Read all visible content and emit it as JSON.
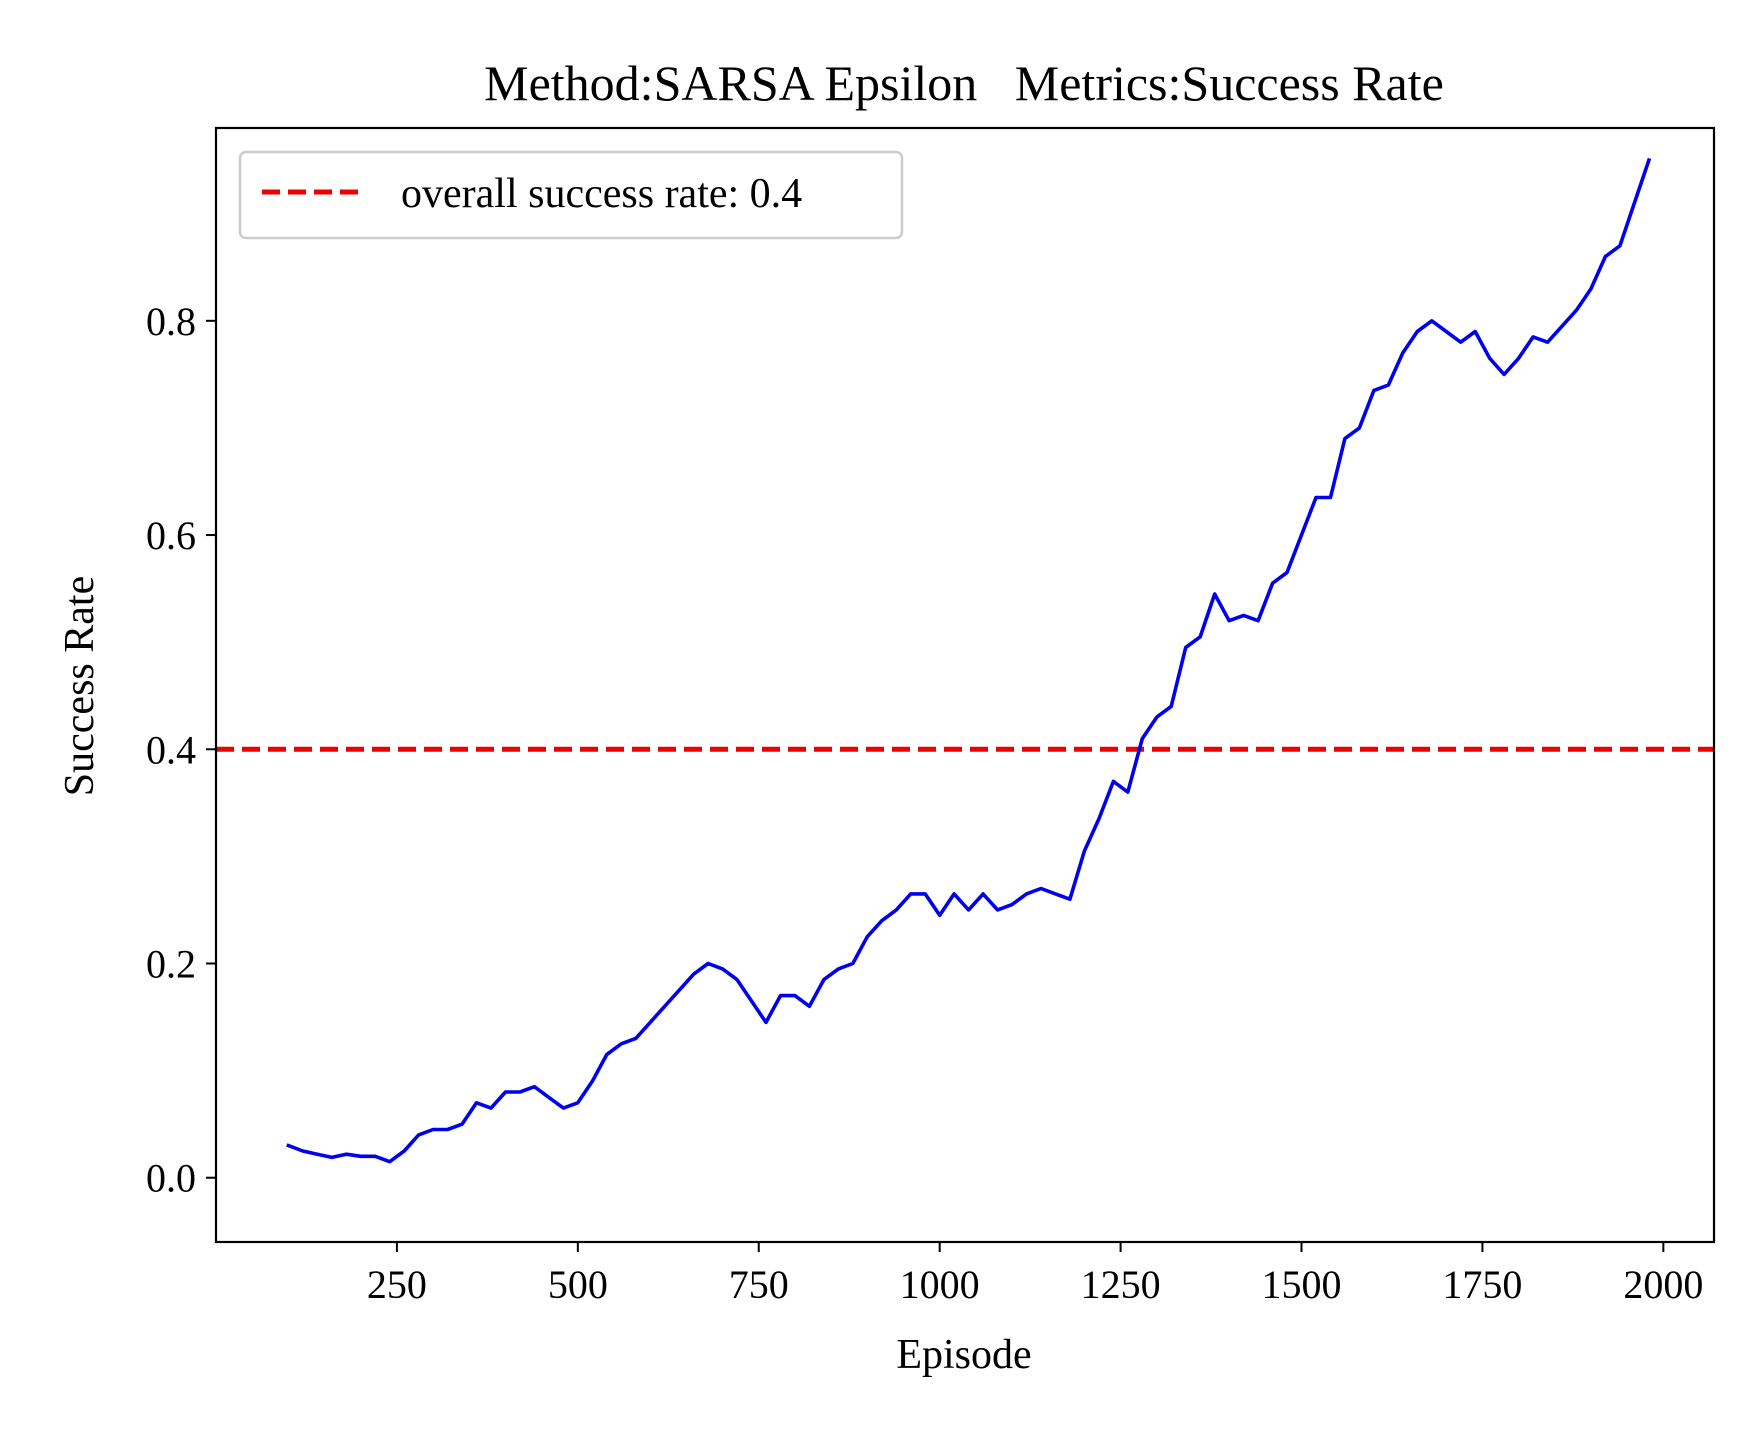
{
  "chart_data": {
    "type": "line",
    "title": "Method:SARSA Epsilon   Metrics:Success Rate",
    "xlabel": "Episode",
    "ylabel": "Success Rate",
    "xlim": [
      0,
      2070
    ],
    "ylim": [
      -0.06,
      0.98
    ],
    "x_ticks": [
      250,
      500,
      750,
      1000,
      1250,
      1500,
      1750,
      2000
    ],
    "y_ticks": [
      0.0,
      0.2,
      0.4,
      0.6,
      0.8
    ],
    "y_tick_labels": [
      "0.0",
      "0.2",
      "0.4",
      "0.6",
      "0.8"
    ],
    "grid": false,
    "legend_position": "upper left",
    "series": [
      {
        "color": "#0000ee",
        "x": [
          100,
          120,
          140,
          160,
          180,
          200,
          220,
          240,
          260,
          280,
          300,
          320,
          340,
          360,
          380,
          400,
          420,
          440,
          460,
          480,
          500,
          520,
          540,
          560,
          580,
          600,
          620,
          640,
          660,
          680,
          700,
          720,
          740,
          760,
          780,
          800,
          820,
          840,
          860,
          880,
          900,
          920,
          940,
          960,
          980,
          1000,
          1020,
          1040,
          1060,
          1080,
          1100,
          1120,
          1140,
          1160,
          1180,
          1200,
          1220,
          1240,
          1260,
          1280,
          1300,
          1320,
          1340,
          1360,
          1380,
          1400,
          1420,
          1440,
          1460,
          1480,
          1500,
          1520,
          1540,
          1560,
          1580,
          1600,
          1620,
          1640,
          1660,
          1680,
          1700,
          1720,
          1740,
          1760,
          1780,
          1800,
          1820,
          1840,
          1860,
          1880,
          1900,
          1920,
          1940,
          1960,
          1980
        ],
        "y": [
          0.03,
          0.025,
          0.022,
          0.019,
          0.022,
          0.02,
          0.02,
          0.015,
          0.025,
          0.04,
          0.045,
          0.045,
          0.05,
          0.07,
          0.065,
          0.08,
          0.08,
          0.085,
          0.075,
          0.065,
          0.07,
          0.09,
          0.115,
          0.125,
          0.13,
          0.145,
          0.16,
          0.175,
          0.19,
          0.2,
          0.195,
          0.185,
          0.165,
          0.145,
          0.17,
          0.17,
          0.16,
          0.185,
          0.195,
          0.2,
          0.225,
          0.24,
          0.25,
          0.265,
          0.265,
          0.245,
          0.265,
          0.25,
          0.265,
          0.25,
          0.255,
          0.265,
          0.27,
          0.265,
          0.26,
          0.305,
          0.335,
          0.37,
          0.36,
          0.41,
          0.43,
          0.44,
          0.495,
          0.505,
          0.545,
          0.52,
          0.525,
          0.52,
          0.555,
          0.565,
          0.6,
          0.635,
          0.635,
          0.69,
          0.7,
          0.735,
          0.74,
          0.77,
          0.79,
          0.8,
          0.79,
          0.78,
          0.79,
          0.765,
          0.75,
          0.765,
          0.785,
          0.78,
          0.795,
          0.81,
          0.83,
          0.86,
          0.87,
          0.91,
          0.95
        ]
      }
    ],
    "reference_line": {
      "y": 0.4,
      "color": "#ee0000",
      "style": "dashed",
      "label": "overall success rate: 0.4"
    }
  }
}
